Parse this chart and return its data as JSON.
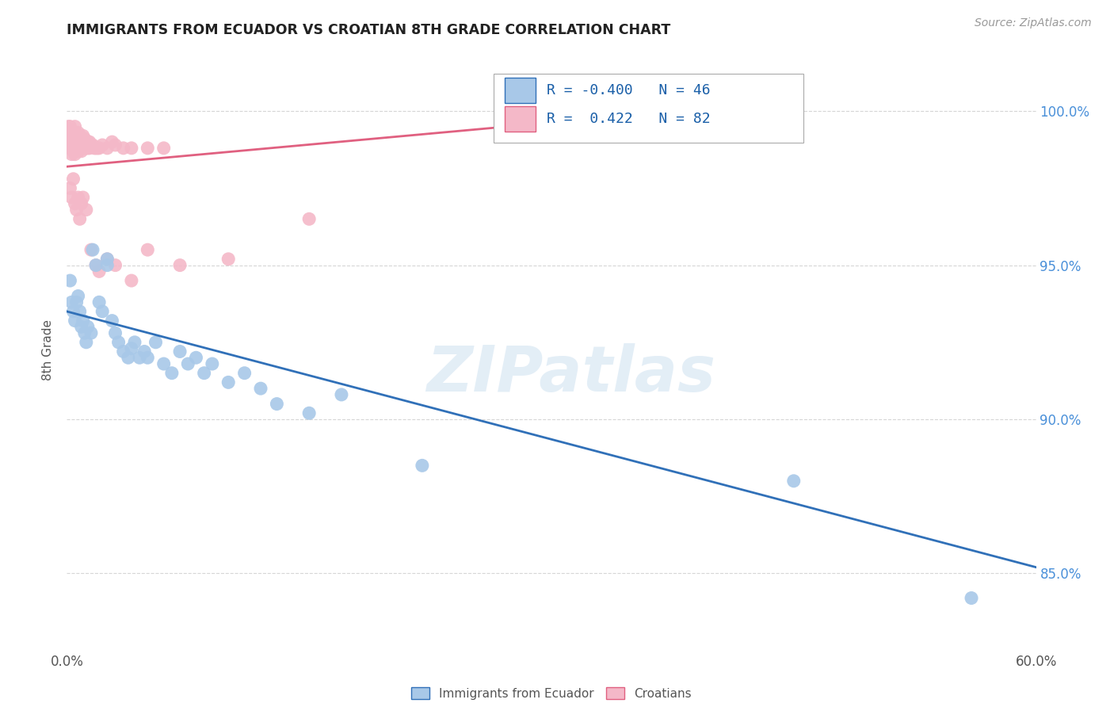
{
  "title": "IMMIGRANTS FROM ECUADOR VS CROATIAN 8TH GRADE CORRELATION CHART",
  "source": "Source: ZipAtlas.com",
  "ylabel": "8th Grade",
  "yticks": [
    85.0,
    90.0,
    95.0,
    100.0
  ],
  "ytick_labels": [
    "85.0%",
    "90.0%",
    "95.0%",
    "100.0%"
  ],
  "xlim": [
    0.0,
    0.6
  ],
  "ylim": [
    82.5,
    102.0
  ],
  "blue_R": "-0.400",
  "blue_N": "46",
  "pink_R": "0.422",
  "pink_N": "82",
  "blue_color": "#a8c8e8",
  "pink_color": "#f4b8c8",
  "blue_line_color": "#3070b8",
  "pink_line_color": "#e06080",
  "watermark_text": "ZIPatlas",
  "legend_label_blue": "Immigrants from Ecuador",
  "legend_label_pink": "Croatians",
  "blue_line_x": [
    0.0,
    0.6
  ],
  "blue_line_y": [
    93.5,
    85.2
  ],
  "pink_line_x": [
    0.0,
    0.42
  ],
  "pink_line_y": [
    98.2,
    100.2
  ],
  "blue_scatter_x": [
    0.002,
    0.003,
    0.004,
    0.005,
    0.006,
    0.007,
    0.008,
    0.009,
    0.01,
    0.011,
    0.012,
    0.013,
    0.015,
    0.016,
    0.018,
    0.02,
    0.022,
    0.025,
    0.025,
    0.028,
    0.03,
    0.032,
    0.035,
    0.038,
    0.04,
    0.042,
    0.045,
    0.048,
    0.05,
    0.055,
    0.06,
    0.065,
    0.07,
    0.075,
    0.08,
    0.085,
    0.09,
    0.1,
    0.11,
    0.12,
    0.13,
    0.15,
    0.17,
    0.22,
    0.45,
    0.56
  ],
  "blue_scatter_y": [
    94.5,
    93.8,
    93.5,
    93.2,
    93.8,
    94.0,
    93.5,
    93.0,
    93.2,
    92.8,
    92.5,
    93.0,
    92.8,
    95.5,
    95.0,
    93.8,
    93.5,
    95.0,
    95.2,
    93.2,
    92.8,
    92.5,
    92.2,
    92.0,
    92.3,
    92.5,
    92.0,
    92.2,
    92.0,
    92.5,
    91.8,
    91.5,
    92.2,
    91.8,
    92.0,
    91.5,
    91.8,
    91.2,
    91.5,
    91.0,
    90.5,
    90.2,
    90.8,
    88.5,
    88.0,
    84.2
  ],
  "pink_scatter_x": [
    0.001,
    0.001,
    0.002,
    0.002,
    0.002,
    0.002,
    0.003,
    0.003,
    0.003,
    0.003,
    0.003,
    0.004,
    0.004,
    0.004,
    0.004,
    0.005,
    0.005,
    0.005,
    0.005,
    0.005,
    0.005,
    0.006,
    0.006,
    0.006,
    0.006,
    0.007,
    0.007,
    0.007,
    0.007,
    0.008,
    0.008,
    0.008,
    0.009,
    0.009,
    0.009,
    0.01,
    0.01,
    0.01,
    0.011,
    0.011,
    0.012,
    0.012,
    0.013,
    0.013,
    0.014,
    0.014,
    0.015,
    0.016,
    0.017,
    0.018,
    0.019,
    0.02,
    0.022,
    0.025,
    0.028,
    0.03,
    0.035,
    0.04,
    0.05,
    0.06,
    0.002,
    0.003,
    0.004,
    0.005,
    0.006,
    0.007,
    0.008,
    0.009,
    0.01,
    0.012,
    0.015,
    0.018,
    0.02,
    0.025,
    0.03,
    0.04,
    0.05,
    0.07,
    0.1,
    0.15,
    0.32,
    0.37
  ],
  "pink_scatter_y": [
    99.5,
    99.2,
    99.5,
    99.2,
    99.0,
    98.8,
    99.3,
    99.2,
    99.0,
    98.8,
    98.6,
    99.3,
    99.1,
    98.9,
    98.7,
    99.5,
    99.3,
    99.2,
    99.0,
    98.8,
    98.6,
    99.2,
    99.0,
    98.9,
    98.7,
    99.3,
    99.1,
    98.9,
    98.7,
    99.2,
    99.0,
    98.8,
    99.1,
    98.9,
    98.7,
    99.2,
    99.0,
    98.8,
    99.1,
    98.9,
    99.0,
    98.8,
    99.0,
    98.8,
    99.0,
    98.8,
    98.9,
    98.9,
    98.8,
    98.8,
    98.8,
    98.8,
    98.9,
    98.8,
    99.0,
    98.9,
    98.8,
    98.8,
    98.8,
    98.8,
    97.5,
    97.2,
    97.8,
    97.0,
    96.8,
    97.2,
    96.5,
    97.0,
    97.2,
    96.8,
    95.5,
    95.0,
    94.8,
    95.2,
    95.0,
    94.5,
    95.5,
    95.0,
    95.2,
    96.5,
    99.8,
    100.2
  ]
}
